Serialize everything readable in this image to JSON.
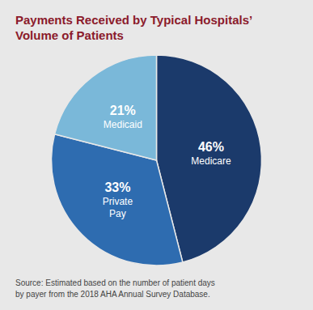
{
  "chart_data": {
    "type": "pie",
    "title": "Payments Received by Typical Hospitals’\nVolume of Patients",
    "categories": [
      "Medicare",
      "Private\nPay",
      "Medicaid"
    ],
    "values": [
      46,
      33,
      21
    ],
    "value_labels": [
      "46%",
      "33%",
      "21%"
    ],
    "colors": [
      "#1B3A6B",
      "#2E6CB0",
      "#7AB8D9"
    ],
    "data_labels": true,
    "annotations": [
      "Source: Estimated based on the number of patient days\nby payer from the 2018 AHA Annual Survey Database."
    ]
  }
}
